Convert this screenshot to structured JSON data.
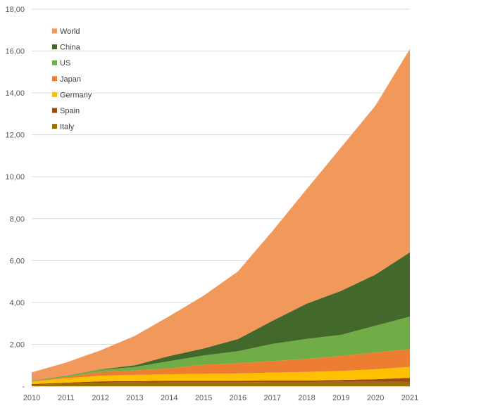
{
  "chart_data": {
    "type": "area",
    "stacked": true,
    "title": "",
    "xlabel": "",
    "ylabel": "",
    "x": [
      "2010",
      "2011",
      "2012",
      "2013",
      "2014",
      "2015",
      "2016",
      "2017",
      "2018",
      "2019",
      "2020",
      "2021"
    ],
    "ylim": [
      0,
      18
    ],
    "yticks": [
      0,
      2,
      4,
      6,
      8,
      10,
      12,
      14,
      16,
      18
    ],
    "ytick_labels": [
      "-",
      "2,00",
      "4,00",
      "6,00",
      "8,00",
      "10,00",
      "12,00",
      "14,00",
      "16,00",
      "18,00"
    ],
    "grid": true,
    "legend_position": "top-left",
    "series": [
      {
        "name": "Italy",
        "color": "#997300",
        "values": [
          0.06,
          0.12,
          0.17,
          0.18,
          0.19,
          0.19,
          0.19,
          0.2,
          0.2,
          0.21,
          0.21,
          0.22
        ]
      },
      {
        "name": "Spain",
        "color": "#9e480e",
        "values": [
          0.04,
          0.05,
          0.06,
          0.06,
          0.07,
          0.07,
          0.07,
          0.07,
          0.07,
          0.09,
          0.12,
          0.18
        ]
      },
      {
        "name": "Germany",
        "color": "#ffc000",
        "values": [
          0.12,
          0.21,
          0.27,
          0.3,
          0.31,
          0.33,
          0.35,
          0.38,
          0.41,
          0.43,
          0.48,
          0.52
        ]
      },
      {
        "name": "Japan",
        "color": "#ed7d31",
        "values": [
          0.02,
          0.06,
          0.18,
          0.21,
          0.28,
          0.44,
          0.49,
          0.55,
          0.62,
          0.72,
          0.8,
          0.85
        ]
      },
      {
        "name": "US",
        "color": "#70ad47",
        "values": [
          0.03,
          0.05,
          0.1,
          0.17,
          0.34,
          0.44,
          0.57,
          0.82,
          0.96,
          1.0,
          1.28,
          1.55
        ]
      },
      {
        "name": "China",
        "color": "#43682b",
        "values": [
          0.0,
          0.01,
          0.02,
          0.08,
          0.25,
          0.33,
          0.58,
          1.1,
          1.68,
          2.1,
          2.44,
          3.07
        ]
      },
      {
        "name": "World",
        "color": "#f0995a",
        "values": [
          0.39,
          0.63,
          0.91,
          1.4,
          1.9,
          2.52,
          3.23,
          4.28,
          5.47,
          6.85,
          8.07,
          9.71
        ]
      }
    ],
    "legend_order": [
      "World",
      "China",
      "US",
      "Japan",
      "Germany",
      "Spain",
      "Italy"
    ]
  }
}
